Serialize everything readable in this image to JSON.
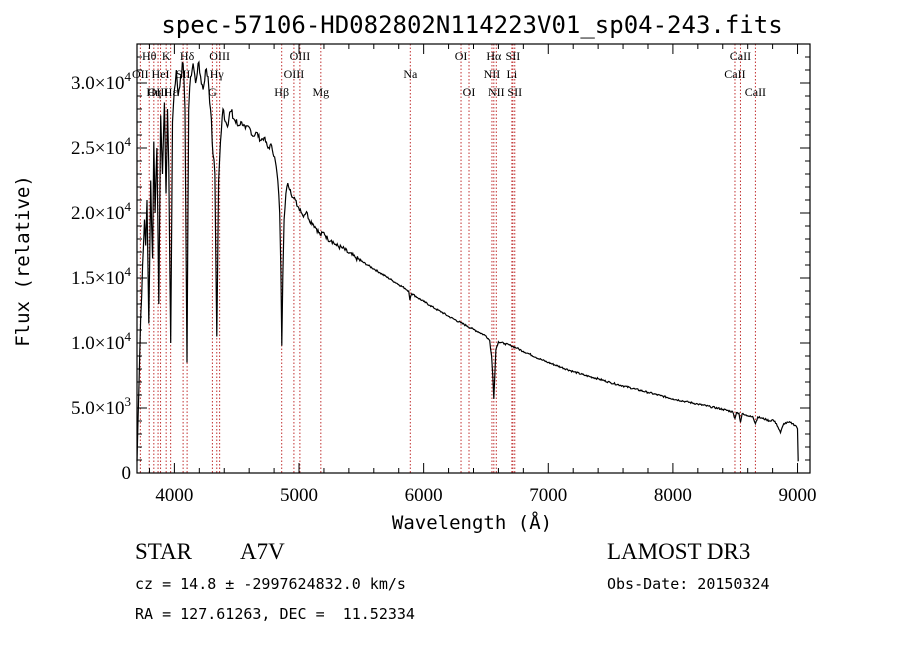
{
  "chart_data": {
    "type": "line",
    "title": "spec-57106-HD082802N114223V01_sp04-243.fits",
    "xlabel": "Wavelength (Å)",
    "ylabel": "Flux (relative)",
    "xlim": [
      3700,
      9100
    ],
    "ylim": [
      0,
      33000
    ],
    "x_ticks": [
      4000,
      5000,
      6000,
      7000,
      8000,
      9000
    ],
    "x_tick_labels": [
      "4000",
      "5000",
      "6000",
      "7000",
      "8000",
      "9000"
    ],
    "x_minor_step": 200,
    "y_ticks": [
      {
        "value": 0,
        "mantissa": "0",
        "exp": ""
      },
      {
        "value": 5000,
        "mantissa": "5.0×10",
        "exp": "3"
      },
      {
        "value": 10000,
        "mantissa": "1.0×10",
        "exp": "4"
      },
      {
        "value": 15000,
        "mantissa": "1.5×10",
        "exp": "4"
      },
      {
        "value": 20000,
        "mantissa": "2.0×10",
        "exp": "4"
      },
      {
        "value": 25000,
        "mantissa": "2.5×10",
        "exp": "4"
      },
      {
        "value": 30000,
        "mantissa": "3.0×10",
        "exp": "4"
      }
    ],
    "y_minor_step": 1000,
    "series": [
      {
        "name": "flux",
        "points": [
          [
            3700,
            900
          ],
          [
            3715,
            6500
          ],
          [
            3730,
            12000
          ],
          [
            3745,
            16000
          ],
          [
            3760,
            19500
          ],
          [
            3770,
            17500
          ],
          [
            3780,
            21000
          ],
          [
            3795,
            11500
          ],
          [
            3810,
            22500
          ],
          [
            3825,
            16500
          ],
          [
            3835,
            25500
          ],
          [
            3845,
            20000
          ],
          [
            3860,
            25000
          ],
          [
            3875,
            13000
          ],
          [
            3890,
            27500
          ],
          [
            3905,
            23000
          ],
          [
            3920,
            28500
          ],
          [
            3933,
            21500
          ],
          [
            3945,
            28000
          ],
          [
            3955,
            23500
          ],
          [
            3970,
            10000
          ],
          [
            3985,
            27000
          ],
          [
            4000,
            29500
          ],
          [
            4015,
            31000
          ],
          [
            4030,
            29000
          ],
          [
            4050,
            30500
          ],
          [
            4070,
            31500
          ],
          [
            4085,
            28000
          ],
          [
            4101,
            8500
          ],
          [
            4115,
            28000
          ],
          [
            4130,
            30500
          ],
          [
            4150,
            31500
          ],
          [
            4170,
            30000
          ],
          [
            4190,
            31500
          ],
          [
            4210,
            30500
          ],
          [
            4230,
            29500
          ],
          [
            4250,
            31000
          ],
          [
            4270,
            30500
          ],
          [
            4290,
            28000
          ],
          [
            4310,
            24500
          ],
          [
            4325,
            23000
          ],
          [
            4340,
            10500
          ],
          [
            4355,
            22500
          ],
          [
            4370,
            25500
          ],
          [
            4390,
            28000
          ],
          [
            4420,
            26800
          ],
          [
            4450,
            27800
          ],
          [
            4480,
            27200
          ],
          [
            4510,
            26700
          ],
          [
            4540,
            27000
          ],
          [
            4570,
            26500
          ],
          [
            4600,
            26600
          ],
          [
            4630,
            25900
          ],
          [
            4660,
            26200
          ],
          [
            4690,
            25600
          ],
          [
            4720,
            25800
          ],
          [
            4750,
            25000
          ],
          [
            4780,
            25200
          ],
          [
            4810,
            24000
          ],
          [
            4830,
            22500
          ],
          [
            4845,
            20000
          ],
          [
            4855,
            15500
          ],
          [
            4862,
            9800
          ],
          [
            4870,
            15000
          ],
          [
            4880,
            19500
          ],
          [
            4895,
            21500
          ],
          [
            4910,
            22300
          ],
          [
            4930,
            21800
          ],
          [
            4950,
            21200
          ],
          [
            4970,
            21000
          ],
          [
            4990,
            20500
          ],
          [
            5010,
            20300
          ],
          [
            5030,
            19800
          ],
          [
            5060,
            20100
          ],
          [
            5080,
            19500
          ],
          [
            5110,
            19200
          ],
          [
            5140,
            18800
          ],
          [
            5170,
            18300
          ],
          [
            5200,
            18500
          ],
          [
            5230,
            18000
          ],
          [
            5260,
            17900
          ],
          [
            5300,
            17500
          ],
          [
            5350,
            17300
          ],
          [
            5400,
            16900
          ],
          [
            5450,
            16600
          ],
          [
            5500,
            16300
          ],
          [
            5550,
            16000
          ],
          [
            5600,
            15700
          ],
          [
            5650,
            15400
          ],
          [
            5700,
            15100
          ],
          [
            5750,
            14800
          ],
          [
            5800,
            14500
          ],
          [
            5850,
            14200
          ],
          [
            5880,
            14000
          ],
          [
            5890,
            13300
          ],
          [
            5896,
            13600
          ],
          [
            5905,
            13800
          ],
          [
            5950,
            13500
          ],
          [
            6000,
            13200
          ],
          [
            6050,
            12900
          ],
          [
            6100,
            12600
          ],
          [
            6150,
            12350
          ],
          [
            6200,
            12050
          ],
          [
            6250,
            11800
          ],
          [
            6300,
            11550
          ],
          [
            6350,
            11300
          ],
          [
            6400,
            11050
          ],
          [
            6450,
            10800
          ],
          [
            6500,
            10550
          ],
          [
            6530,
            10200
          ],
          [
            6545,
            9000
          ],
          [
            6556,
            7300
          ],
          [
            6563,
            5700
          ],
          [
            6570,
            7300
          ],
          [
            6580,
            9500
          ],
          [
            6600,
            10100
          ],
          [
            6650,
            9950
          ],
          [
            6700,
            9800
          ],
          [
            6750,
            9600
          ],
          [
            6800,
            9350
          ],
          [
            6850,
            9150
          ],
          [
            6900,
            8900
          ],
          [
            6950,
            8700
          ],
          [
            7000,
            8500
          ],
          [
            7100,
            8150
          ],
          [
            7200,
            7800
          ],
          [
            7300,
            7500
          ],
          [
            7400,
            7250
          ],
          [
            7500,
            6950
          ],
          [
            7600,
            6700
          ],
          [
            7700,
            6450
          ],
          [
            7800,
            6200
          ],
          [
            7900,
            5950
          ],
          [
            8000,
            5700
          ],
          [
            8100,
            5500
          ],
          [
            8200,
            5300
          ],
          [
            8300,
            5100
          ],
          [
            8400,
            4900
          ],
          [
            8480,
            4700
          ],
          [
            8498,
            4200
          ],
          [
            8510,
            4650
          ],
          [
            8530,
            4600
          ],
          [
            8542,
            3900
          ],
          [
            8555,
            4550
          ],
          [
            8580,
            4450
          ],
          [
            8600,
            4400
          ],
          [
            8620,
            4400
          ],
          [
            8640,
            4350
          ],
          [
            8662,
            3800
          ],
          [
            8680,
            4300
          ],
          [
            8720,
            4200
          ],
          [
            8750,
            4100
          ],
          [
            8780,
            4000
          ],
          [
            8800,
            4100
          ],
          [
            8830,
            3800
          ],
          [
            8863,
            3100
          ],
          [
            8890,
            3800
          ],
          [
            8930,
            3900
          ],
          [
            8960,
            3800
          ],
          [
            8990,
            3600
          ],
          [
            9000,
            3400
          ],
          [
            9005,
            900
          ]
        ]
      }
    ],
    "spectral_lines": [
      {
        "label": "Hθ",
        "wavelength": 3798,
        "row": 0
      },
      {
        "label": "OII",
        "wavelength": 3727,
        "row": 1
      },
      {
        "label": "OIII",
        "wavelength": 3869,
        "row": 2
      },
      {
        "label": "K",
        "wavelength": 3934,
        "row": 0
      },
      {
        "label": "HeI",
        "wavelength": 3889,
        "row": 1
      },
      {
        "label": "Hη",
        "wavelength": 3835,
        "row": 2
      },
      {
        "label": "Hδ",
        "wavelength": 4102,
        "row": 0
      },
      {
        "label": "SII",
        "wavelength": 4070,
        "row": 1
      },
      {
        "label": "Hε",
        "wavelength": 3970,
        "row": 2
      },
      {
        "label": "OIII",
        "wavelength": 4363,
        "row": 0
      },
      {
        "label": "Hγ",
        "wavelength": 4340,
        "row": 1
      },
      {
        "label": "G",
        "wavelength": 4305,
        "row": 2
      },
      {
        "label": "OIII",
        "wavelength": 5007,
        "row": 0
      },
      {
        "label": "OIII",
        "wavelength": 4959,
        "row": 1
      },
      {
        "label": "Hβ",
        "wavelength": 4861,
        "row": 2
      },
      {
        "label": "Mg",
        "wavelength": 5175,
        "row": 2
      },
      {
        "label": "Na",
        "wavelength": 5893,
        "row": 1
      },
      {
        "label": "OI",
        "wavelength": 6300,
        "row": 0
      },
      {
        "label": "OI",
        "wavelength": 6364,
        "row": 2
      },
      {
        "label": "Hα",
        "wavelength": 6563,
        "row": 0
      },
      {
        "label": "NII",
        "wavelength": 6548,
        "row": 1
      },
      {
        "label": "NII",
        "wavelength": 6583,
        "row": 2
      },
      {
        "label": "SII",
        "wavelength": 6716,
        "row": 0
      },
      {
        "label": "Li",
        "wavelength": 6708,
        "row": 1
      },
      {
        "label": "SII",
        "wavelength": 6731,
        "row": 2
      },
      {
        "label": "CaII",
        "wavelength": 8542,
        "row": 0
      },
      {
        "label": "CaII",
        "wavelength": 8498,
        "row": 1
      },
      {
        "label": "CaII",
        "wavelength": 8662,
        "row": 2
      }
    ]
  },
  "footer": {
    "object_type": "STAR",
    "spectral_class": "A7V",
    "survey": "LAMOST DR3",
    "redshift_line": "cz = 14.8 ± -2997624832.0 km/s",
    "obs_date_line": "Obs-Date: 20150324",
    "coords_line": "RA = 127.61263, DEC =  11.52334"
  }
}
